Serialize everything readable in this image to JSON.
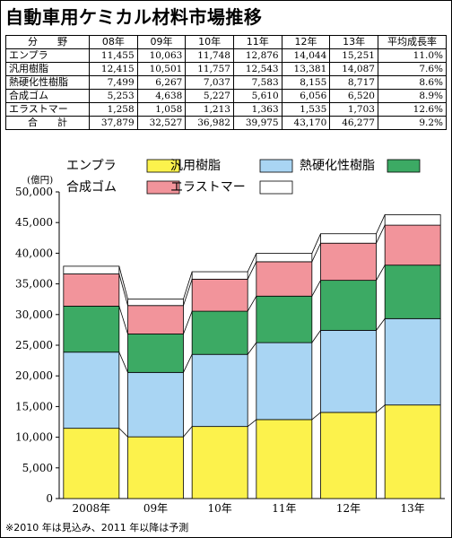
{
  "title": "自動車用ケミカル材料市場推移",
  "table": {
    "headers": [
      "分　　野",
      "08年",
      "09年",
      "10年",
      "11年",
      "12年",
      "13年",
      "平均成長率"
    ],
    "rows": [
      {
        "label": "エンプラ",
        "values": [
          "11,455",
          "10,063",
          "11,748",
          "12,876",
          "14,044",
          "15,251",
          "11.0%"
        ]
      },
      {
        "label": "汎用樹脂",
        "values": [
          "12,415",
          "10,501",
          "11,757",
          "12,543",
          "13,381",
          "14,087",
          "7.6%"
        ]
      },
      {
        "label": "熱硬化性樹脂",
        "values": [
          "7,499",
          "6,267",
          "7,037",
          "7,583",
          "8,155",
          "8,717",
          "8.6%"
        ]
      },
      {
        "label": "合成ゴム",
        "values": [
          "5,253",
          "4,638",
          "5,227",
          "5,610",
          "6,056",
          "6,520",
          "8.9%"
        ]
      },
      {
        "label": "エラストマー",
        "values": [
          "1,258",
          "1,058",
          "1,213",
          "1,363",
          "1,535",
          "1,703",
          "12.6%"
        ]
      },
      {
        "label": "合　　計",
        "values": [
          "37,879",
          "32,527",
          "36,982",
          "39,975",
          "43,170",
          "46,277",
          "9.2%"
        ]
      }
    ]
  },
  "chart_data": {
    "type": "bar",
    "stacked": true,
    "unit_label": "(億円)",
    "categories": [
      "2008年",
      "09年",
      "10年",
      "11年",
      "12年",
      "13年"
    ],
    "ylim": [
      0,
      50000
    ],
    "yticks": [
      "0",
      "5,000",
      "10,000",
      "15,000",
      "20,000",
      "25,000",
      "30,000",
      "35,000",
      "40,000",
      "45,000",
      "50,000"
    ],
    "legend_position": "top",
    "series": [
      {
        "name": "エンプラ",
        "color": "#fcf24c",
        "values": [
          11455,
          10063,
          11748,
          12876,
          14044,
          15251
        ]
      },
      {
        "name": "汎用樹脂",
        "color": "#a9d5f3",
        "values": [
          12415,
          10501,
          11757,
          12543,
          13381,
          14087
        ]
      },
      {
        "name": "熱硬化性樹脂",
        "color": "#3caa64",
        "values": [
          7499,
          6267,
          7037,
          7583,
          8155,
          8717
        ]
      },
      {
        "name": "合成ゴム",
        "color": "#f2949b",
        "values": [
          5253,
          4638,
          5227,
          5610,
          6056,
          6520
        ]
      },
      {
        "name": "エラストマー",
        "color": "#ffffff",
        "values": [
          1258,
          1058,
          1213,
          1363,
          1535,
          1703
        ]
      }
    ]
  },
  "note": "※2010 年は見込み、2011 年以降は予測"
}
